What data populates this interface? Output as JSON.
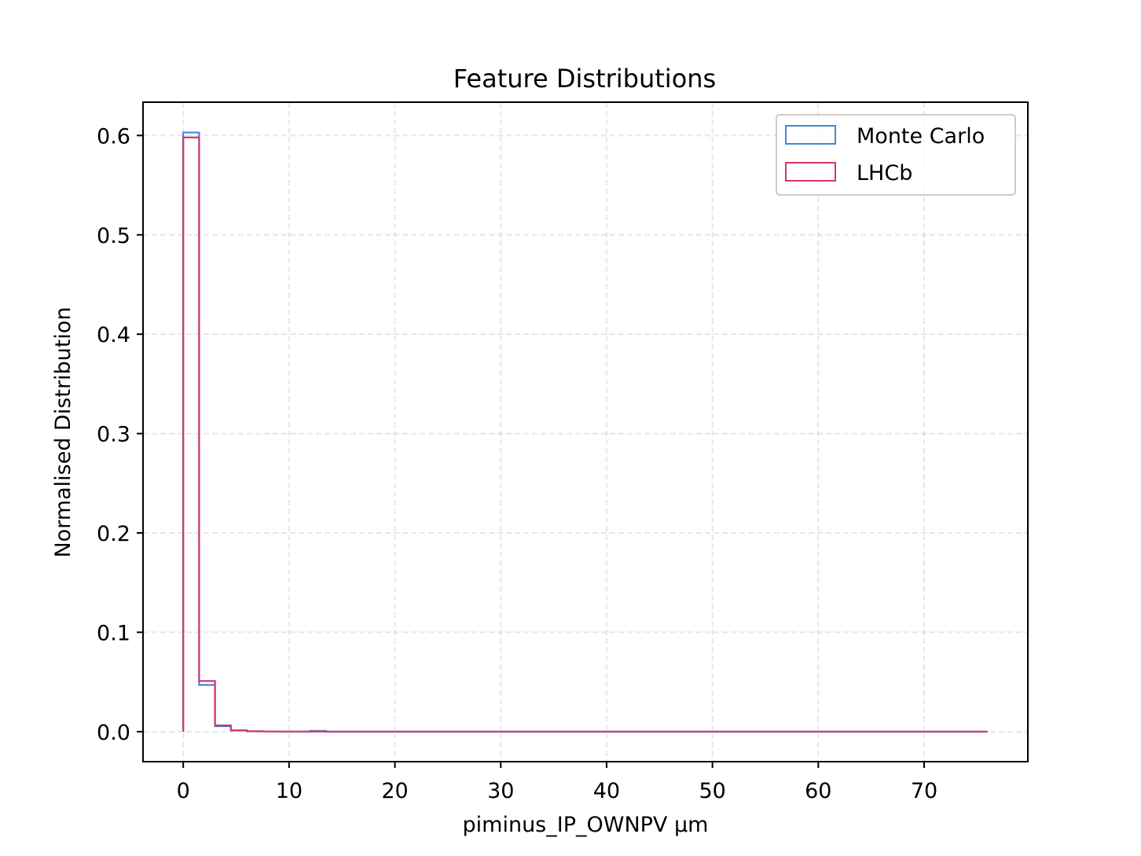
{
  "chart_data": {
    "type": "histogram-step",
    "title": "Feature Distributions",
    "xlabel": "piminus_IP_OWNPV µm",
    "ylabel": "Normalised Distribution",
    "xlim": [
      -3.8,
      79.8
    ],
    "ylim": [
      -0.0302,
      0.6335
    ],
    "xticks": [
      0,
      10,
      20,
      30,
      40,
      50,
      60,
      70
    ],
    "yticks": [
      0.0,
      0.1,
      0.2,
      0.3,
      0.4,
      0.5,
      0.6
    ],
    "ytick_labels": [
      "0.0",
      "0.1",
      "0.2",
      "0.3",
      "0.4",
      "0.5",
      "0.6"
    ],
    "grid": true,
    "legend_position": "upper right",
    "bin_edges": [
      0,
      1.5,
      3.0,
      4.5,
      6.0,
      7.5,
      9.0,
      10.5,
      12.0,
      13.5,
      76.0
    ],
    "series": [
      {
        "name": "Monte Carlo",
        "color": "#3a8ad6",
        "values": [
          0.603,
          0.047,
          0.0055,
          0.0012,
          0.0004,
          0.0002,
          0.0001,
          0.0001,
          0.0008,
          0.0
        ]
      },
      {
        "name": "LHCb",
        "color": "#d03670",
        "values": [
          0.598,
          0.051,
          0.0063,
          0.0014,
          0.0004,
          0.0002,
          0.0001,
          0.0001,
          0.0001,
          0.0
        ]
      }
    ]
  }
}
